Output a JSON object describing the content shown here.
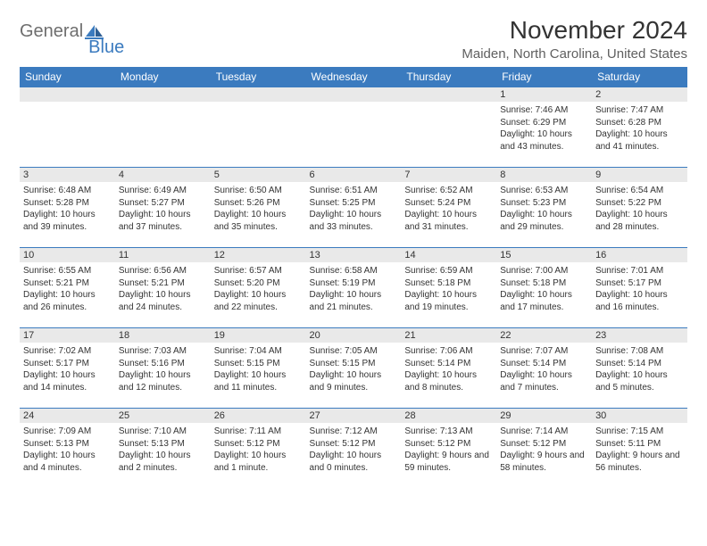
{
  "colors": {
    "header_bg": "#3b7bbf",
    "header_text": "#ffffff",
    "daynum_bg": "#e9e9e9",
    "row_border": "#3b7bbf",
    "body_text": "#333333",
    "logo_gray": "#6e6e6e",
    "logo_blue": "#3b7bbf",
    "location_text": "#5f5f5f",
    "page_bg": "#ffffff"
  },
  "typography": {
    "month_title_fontsize": 28,
    "location_fontsize": 15,
    "weekday_fontsize": 12,
    "daynum_fontsize": 11,
    "body_fontsize": 10,
    "font_family": "Arial"
  },
  "logo": {
    "text1": "General",
    "text2": "Blue"
  },
  "title": "November 2024",
  "location": "Maiden, North Carolina, United States",
  "weekdays": [
    "Sunday",
    "Monday",
    "Tuesday",
    "Wednesday",
    "Thursday",
    "Friday",
    "Saturday"
  ],
  "weeks": [
    [
      {
        "day": "",
        "sunrise": "",
        "sunset": "",
        "daylight": ""
      },
      {
        "day": "",
        "sunrise": "",
        "sunset": "",
        "daylight": ""
      },
      {
        "day": "",
        "sunrise": "",
        "sunset": "",
        "daylight": ""
      },
      {
        "day": "",
        "sunrise": "",
        "sunset": "",
        "daylight": ""
      },
      {
        "day": "",
        "sunrise": "",
        "sunset": "",
        "daylight": ""
      },
      {
        "day": "1",
        "sunrise": "Sunrise: 7:46 AM",
        "sunset": "Sunset: 6:29 PM",
        "daylight": "Daylight: 10 hours and 43 minutes."
      },
      {
        "day": "2",
        "sunrise": "Sunrise: 7:47 AM",
        "sunset": "Sunset: 6:28 PM",
        "daylight": "Daylight: 10 hours and 41 minutes."
      }
    ],
    [
      {
        "day": "3",
        "sunrise": "Sunrise: 6:48 AM",
        "sunset": "Sunset: 5:28 PM",
        "daylight": "Daylight: 10 hours and 39 minutes."
      },
      {
        "day": "4",
        "sunrise": "Sunrise: 6:49 AM",
        "sunset": "Sunset: 5:27 PM",
        "daylight": "Daylight: 10 hours and 37 minutes."
      },
      {
        "day": "5",
        "sunrise": "Sunrise: 6:50 AM",
        "sunset": "Sunset: 5:26 PM",
        "daylight": "Daylight: 10 hours and 35 minutes."
      },
      {
        "day": "6",
        "sunrise": "Sunrise: 6:51 AM",
        "sunset": "Sunset: 5:25 PM",
        "daylight": "Daylight: 10 hours and 33 minutes."
      },
      {
        "day": "7",
        "sunrise": "Sunrise: 6:52 AM",
        "sunset": "Sunset: 5:24 PM",
        "daylight": "Daylight: 10 hours and 31 minutes."
      },
      {
        "day": "8",
        "sunrise": "Sunrise: 6:53 AM",
        "sunset": "Sunset: 5:23 PM",
        "daylight": "Daylight: 10 hours and 29 minutes."
      },
      {
        "day": "9",
        "sunrise": "Sunrise: 6:54 AM",
        "sunset": "Sunset: 5:22 PM",
        "daylight": "Daylight: 10 hours and 28 minutes."
      }
    ],
    [
      {
        "day": "10",
        "sunrise": "Sunrise: 6:55 AM",
        "sunset": "Sunset: 5:21 PM",
        "daylight": "Daylight: 10 hours and 26 minutes."
      },
      {
        "day": "11",
        "sunrise": "Sunrise: 6:56 AM",
        "sunset": "Sunset: 5:21 PM",
        "daylight": "Daylight: 10 hours and 24 minutes."
      },
      {
        "day": "12",
        "sunrise": "Sunrise: 6:57 AM",
        "sunset": "Sunset: 5:20 PM",
        "daylight": "Daylight: 10 hours and 22 minutes."
      },
      {
        "day": "13",
        "sunrise": "Sunrise: 6:58 AM",
        "sunset": "Sunset: 5:19 PM",
        "daylight": "Daylight: 10 hours and 21 minutes."
      },
      {
        "day": "14",
        "sunrise": "Sunrise: 6:59 AM",
        "sunset": "Sunset: 5:18 PM",
        "daylight": "Daylight: 10 hours and 19 minutes."
      },
      {
        "day": "15",
        "sunrise": "Sunrise: 7:00 AM",
        "sunset": "Sunset: 5:18 PM",
        "daylight": "Daylight: 10 hours and 17 minutes."
      },
      {
        "day": "16",
        "sunrise": "Sunrise: 7:01 AM",
        "sunset": "Sunset: 5:17 PM",
        "daylight": "Daylight: 10 hours and 16 minutes."
      }
    ],
    [
      {
        "day": "17",
        "sunrise": "Sunrise: 7:02 AM",
        "sunset": "Sunset: 5:17 PM",
        "daylight": "Daylight: 10 hours and 14 minutes."
      },
      {
        "day": "18",
        "sunrise": "Sunrise: 7:03 AM",
        "sunset": "Sunset: 5:16 PM",
        "daylight": "Daylight: 10 hours and 12 minutes."
      },
      {
        "day": "19",
        "sunrise": "Sunrise: 7:04 AM",
        "sunset": "Sunset: 5:15 PM",
        "daylight": "Daylight: 10 hours and 11 minutes."
      },
      {
        "day": "20",
        "sunrise": "Sunrise: 7:05 AM",
        "sunset": "Sunset: 5:15 PM",
        "daylight": "Daylight: 10 hours and 9 minutes."
      },
      {
        "day": "21",
        "sunrise": "Sunrise: 7:06 AM",
        "sunset": "Sunset: 5:14 PM",
        "daylight": "Daylight: 10 hours and 8 minutes."
      },
      {
        "day": "22",
        "sunrise": "Sunrise: 7:07 AM",
        "sunset": "Sunset: 5:14 PM",
        "daylight": "Daylight: 10 hours and 7 minutes."
      },
      {
        "day": "23",
        "sunrise": "Sunrise: 7:08 AM",
        "sunset": "Sunset: 5:14 PM",
        "daylight": "Daylight: 10 hours and 5 minutes."
      }
    ],
    [
      {
        "day": "24",
        "sunrise": "Sunrise: 7:09 AM",
        "sunset": "Sunset: 5:13 PM",
        "daylight": "Daylight: 10 hours and 4 minutes."
      },
      {
        "day": "25",
        "sunrise": "Sunrise: 7:10 AM",
        "sunset": "Sunset: 5:13 PM",
        "daylight": "Daylight: 10 hours and 2 minutes."
      },
      {
        "day": "26",
        "sunrise": "Sunrise: 7:11 AM",
        "sunset": "Sunset: 5:12 PM",
        "daylight": "Daylight: 10 hours and 1 minute."
      },
      {
        "day": "27",
        "sunrise": "Sunrise: 7:12 AM",
        "sunset": "Sunset: 5:12 PM",
        "daylight": "Daylight: 10 hours and 0 minutes."
      },
      {
        "day": "28",
        "sunrise": "Sunrise: 7:13 AM",
        "sunset": "Sunset: 5:12 PM",
        "daylight": "Daylight: 9 hours and 59 minutes."
      },
      {
        "day": "29",
        "sunrise": "Sunrise: 7:14 AM",
        "sunset": "Sunset: 5:12 PM",
        "daylight": "Daylight: 9 hours and 58 minutes."
      },
      {
        "day": "30",
        "sunrise": "Sunrise: 7:15 AM",
        "sunset": "Sunset: 5:11 PM",
        "daylight": "Daylight: 9 hours and 56 minutes."
      }
    ]
  ]
}
